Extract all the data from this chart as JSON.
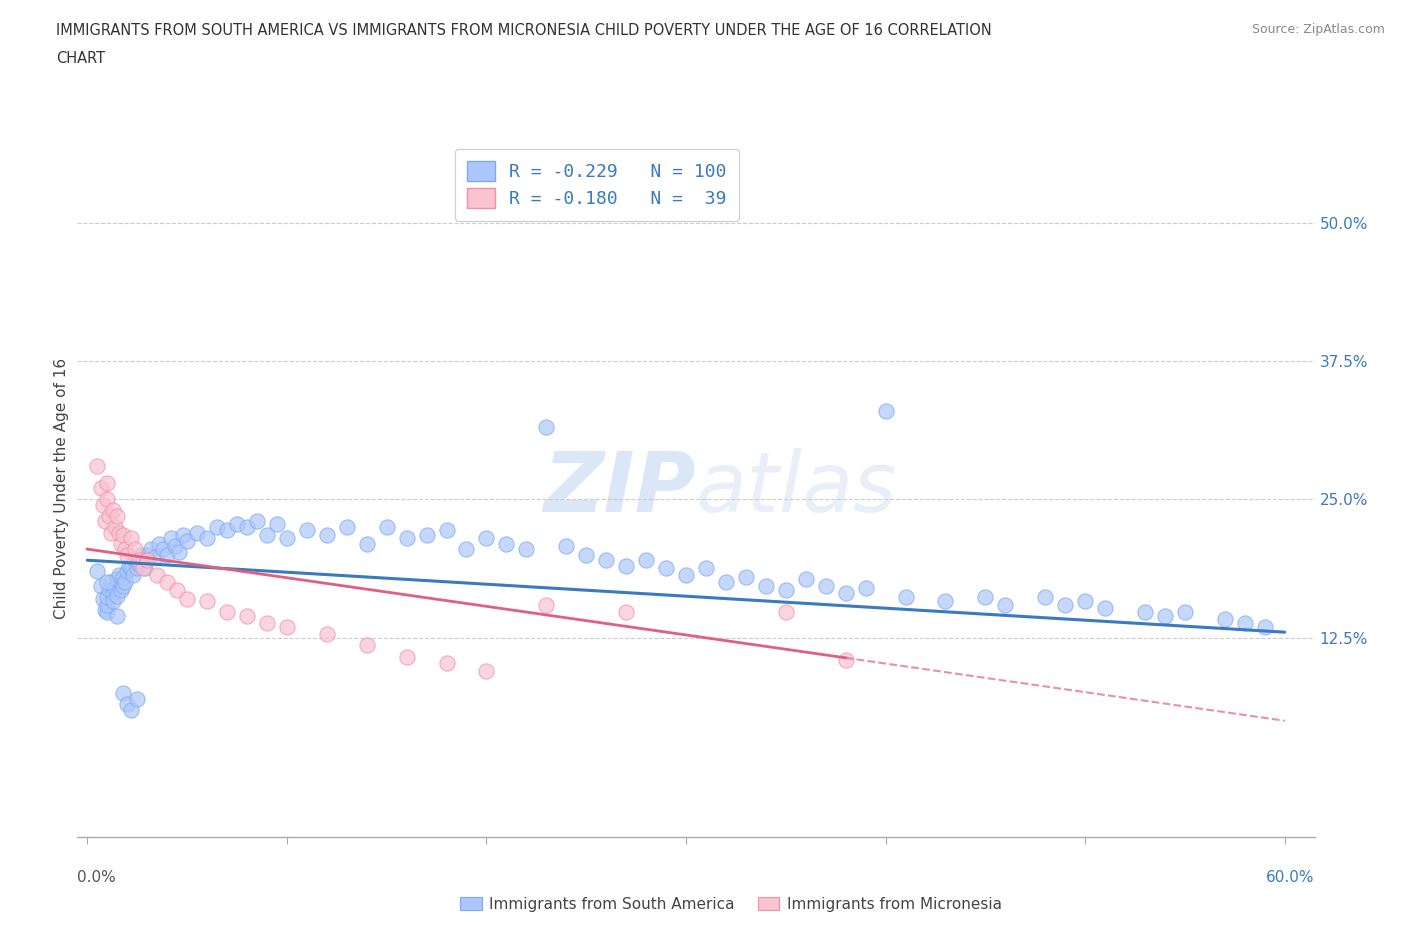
{
  "title_line1": "IMMIGRANTS FROM SOUTH AMERICA VS IMMIGRANTS FROM MICRONESIA CHILD POVERTY UNDER THE AGE OF 16 CORRELATION",
  "title_line2": "CHART",
  "source": "Source: ZipAtlas.com",
  "ylabel": "Child Poverty Under the Age of 16",
  "xlim": [
    -0.005,
    0.615
  ],
  "ylim": [
    -0.055,
    0.575
  ],
  "ytick_right_vals": [
    0.125,
    0.25,
    0.375,
    0.5
  ],
  "ytick_right_labels": [
    "12.5%",
    "25.0%",
    "37.5%",
    "50.0%"
  ],
  "blue_face": "#aec6fb",
  "blue_edge": "#7aaaf5",
  "pink_face": "#f9c3d0",
  "pink_edge": "#f090aa",
  "trend_blue": "#3a7abf",
  "trend_pink": "#e06080",
  "R_blue": -0.229,
  "N_blue": 100,
  "R_pink": -0.18,
  "N_pink": 39,
  "watermark": "ZIPatlas",
  "legend_label_blue": "Immigrants from South America",
  "legend_label_pink": "Immigrants from Micronesia",
  "blue_trend_start_y": 0.195,
  "blue_trend_end_y": 0.13,
  "pink_trend_start_y": 0.205,
  "pink_trend_end_y": 0.05,
  "blue_scatter_x": [
    0.005,
    0.007,
    0.008,
    0.009,
    0.01,
    0.01,
    0.01,
    0.011,
    0.012,
    0.013,
    0.013,
    0.014,
    0.015,
    0.015,
    0.016,
    0.017,
    0.018,
    0.018,
    0.019,
    0.02,
    0.021,
    0.022,
    0.023,
    0.024,
    0.025,
    0.026,
    0.027,
    0.028,
    0.029,
    0.03,
    0.032,
    0.034,
    0.036,
    0.038,
    0.04,
    0.042,
    0.044,
    0.046,
    0.048,
    0.05,
    0.055,
    0.06,
    0.065,
    0.07,
    0.075,
    0.08,
    0.085,
    0.09,
    0.095,
    0.1,
    0.11,
    0.12,
    0.13,
    0.14,
    0.15,
    0.16,
    0.17,
    0.18,
    0.19,
    0.2,
    0.21,
    0.22,
    0.23,
    0.24,
    0.25,
    0.26,
    0.27,
    0.28,
    0.29,
    0.3,
    0.31,
    0.32,
    0.33,
    0.34,
    0.35,
    0.36,
    0.37,
    0.38,
    0.39,
    0.4,
    0.41,
    0.43,
    0.45,
    0.46,
    0.48,
    0.49,
    0.5,
    0.51,
    0.53,
    0.54,
    0.55,
    0.57,
    0.58,
    0.59,
    0.01,
    0.015,
    0.018,
    0.02,
    0.022,
    0.025
  ],
  "blue_scatter_y": [
    0.185,
    0.172,
    0.16,
    0.15,
    0.148,
    0.155,
    0.162,
    0.168,
    0.175,
    0.165,
    0.158,
    0.17,
    0.178,
    0.163,
    0.182,
    0.168,
    0.172,
    0.18,
    0.175,
    0.185,
    0.19,
    0.188,
    0.182,
    0.195,
    0.188,
    0.192,
    0.2,
    0.195,
    0.188,
    0.2,
    0.205,
    0.198,
    0.21,
    0.205,
    0.2,
    0.215,
    0.208,
    0.202,
    0.218,
    0.212,
    0.22,
    0.215,
    0.225,
    0.222,
    0.228,
    0.225,
    0.23,
    0.218,
    0.228,
    0.215,
    0.222,
    0.218,
    0.225,
    0.21,
    0.225,
    0.215,
    0.218,
    0.222,
    0.205,
    0.215,
    0.21,
    0.205,
    0.315,
    0.208,
    0.2,
    0.195,
    0.19,
    0.195,
    0.188,
    0.182,
    0.188,
    0.175,
    0.18,
    0.172,
    0.168,
    0.178,
    0.172,
    0.165,
    0.17,
    0.33,
    0.162,
    0.158,
    0.162,
    0.155,
    0.162,
    0.155,
    0.158,
    0.152,
    0.148,
    0.145,
    0.148,
    0.142,
    0.138,
    0.135,
    0.175,
    0.145,
    0.075,
    0.065,
    0.06,
    0.07
  ],
  "pink_scatter_x": [
    0.005,
    0.007,
    0.008,
    0.009,
    0.01,
    0.01,
    0.011,
    0.012,
    0.013,
    0.014,
    0.015,
    0.016,
    0.017,
    0.018,
    0.019,
    0.02,
    0.022,
    0.024,
    0.026,
    0.028,
    0.03,
    0.035,
    0.04,
    0.045,
    0.05,
    0.06,
    0.07,
    0.08,
    0.09,
    0.1,
    0.12,
    0.14,
    0.16,
    0.18,
    0.2,
    0.23,
    0.27,
    0.35,
    0.38
  ],
  "pink_scatter_y": [
    0.28,
    0.26,
    0.245,
    0.23,
    0.265,
    0.25,
    0.235,
    0.22,
    0.24,
    0.225,
    0.235,
    0.22,
    0.21,
    0.218,
    0.205,
    0.2,
    0.215,
    0.205,
    0.195,
    0.188,
    0.195,
    0.182,
    0.175,
    0.168,
    0.16,
    0.158,
    0.148,
    0.145,
    0.138,
    0.135,
    0.128,
    0.118,
    0.108,
    0.102,
    0.095,
    0.155,
    0.148,
    0.148,
    0.105
  ]
}
